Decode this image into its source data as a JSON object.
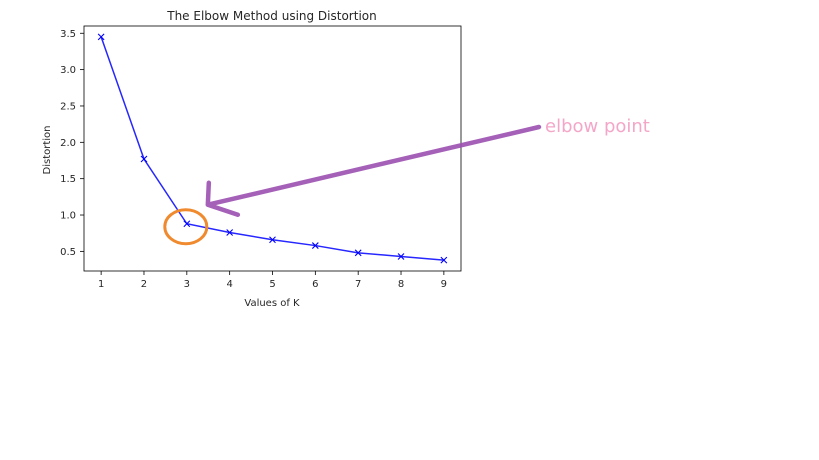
{
  "chart_data": {
    "type": "line",
    "title": "The Elbow Method using Distortion",
    "xlabel": "Values of K",
    "ylabel": "Distortion",
    "x": [
      1,
      2,
      3,
      4,
      5,
      6,
      7,
      8,
      9
    ],
    "series": [
      {
        "values": [
          3.45,
          1.77,
          0.88,
          0.76,
          0.66,
          0.58,
          0.48,
          0.43,
          0.38
        ],
        "color": "#0000ff",
        "marker": "x"
      }
    ],
    "xlim": [
      0.6,
      9.4
    ],
    "ylim": [
      0.23,
      3.6
    ],
    "xticks": [
      "1",
      "2",
      "3",
      "4",
      "5",
      "6",
      "7",
      "8",
      "9"
    ],
    "yticks": [
      "0.5",
      "1.0",
      "1.5",
      "2.0",
      "2.5",
      "3.0",
      "3.5"
    ],
    "grid": false
  },
  "annotation": {
    "label": "elbow point",
    "label_color": "#f4a6c8",
    "arrow_color": "#9b4fb0",
    "circle_color": "#f08a2e",
    "target_k": 3
  }
}
